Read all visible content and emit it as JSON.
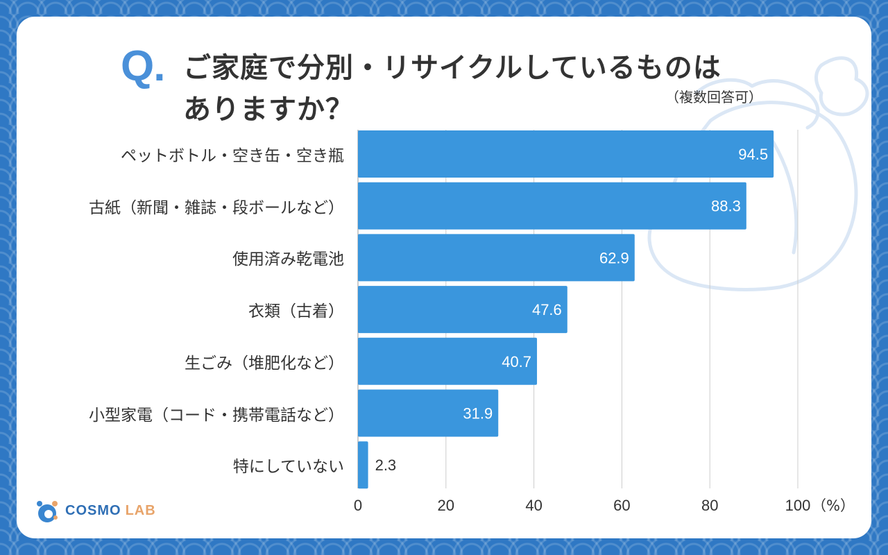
{
  "header": {
    "q_mark": "Q",
    "q_dot": ".",
    "title_line1": "ご家庭で分別・リサイクルしているものは",
    "title_line2": "ありますか？",
    "note": "（複数回答可）"
  },
  "logo": {
    "cosmo": "COSMO",
    "lab": "LAB",
    "icon": "cosmo-lab-logo-icon"
  },
  "colors": {
    "background": "#2f78c4",
    "bar": "#3a96dd",
    "grid": "#cccccc",
    "accent": "#4a90d9"
  },
  "chart_data": {
    "type": "bar",
    "orientation": "horizontal",
    "categories": [
      "ペットボトル・空き缶・空き瓶",
      "古紙（新聞・雑誌・段ボールなど）",
      "使用済み乾電池",
      "衣類（古着）",
      "生ごみ（堆肥化など）",
      "小型家電（コード・携帯電話など）",
      "特にしていない"
    ],
    "values": [
      94.5,
      88.3,
      62.9,
      47.6,
      40.7,
      31.9,
      2.3
    ],
    "value_labels": [
      "94.5",
      "88.3",
      "62.9",
      "47.6",
      "40.7",
      "31.9",
      "2.3"
    ],
    "xlim": [
      0,
      100
    ],
    "xticks": [
      0,
      20,
      40,
      60,
      80,
      100
    ],
    "xtick_labels": [
      "0",
      "20",
      "40",
      "60",
      "80",
      "100"
    ],
    "unit_label": "（%）",
    "grid": true
  }
}
